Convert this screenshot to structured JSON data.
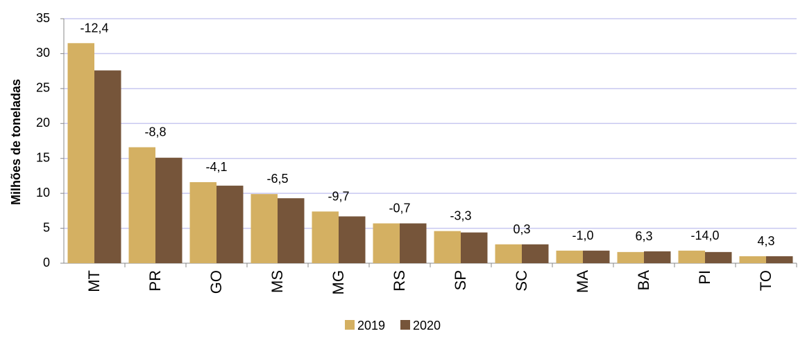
{
  "chart_data": {
    "type": "bar",
    "y_axis_label": "Milhões de toneladas",
    "categories": [
      "MT",
      "PR",
      "GO",
      "MS",
      "MG",
      "RS",
      "SP",
      "SC",
      "MA",
      "BA",
      "PI",
      "TO"
    ],
    "series": [
      {
        "name": "2019",
        "color": "#d4b062",
        "values": [
          31.5,
          16.6,
          11.6,
          9.9,
          7.4,
          5.7,
          4.6,
          2.7,
          1.8,
          1.6,
          1.8,
          1.0
        ]
      },
      {
        "name": "2020",
        "color": "#76553a",
        "values": [
          27.6,
          15.1,
          11.1,
          9.3,
          6.7,
          5.7,
          4.4,
          2.7,
          1.8,
          1.7,
          1.6,
          1.0
        ]
      }
    ],
    "annotations": [
      "-12,4",
      "-8,8",
      "-4,1",
      "-6,5",
      "-9,7",
      "-0,7",
      "-3,3",
      "0,3",
      "-1,0",
      "6,3",
      "-14,0",
      "4,3"
    ],
    "ylim": [
      0,
      35
    ],
    "yticks": [
      0,
      5,
      10,
      15,
      20,
      25,
      30,
      35
    ],
    "grid": true,
    "legend": "bottom"
  }
}
